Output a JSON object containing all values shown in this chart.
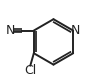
{
  "bg_color": "#ffffff",
  "line_color": "#222222",
  "line_width": 1.4,
  "font_size": 8.5,
  "text_color": "#222222",
  "n_ring_label": "N",
  "cn_n_label": "N",
  "cl_label": "Cl"
}
